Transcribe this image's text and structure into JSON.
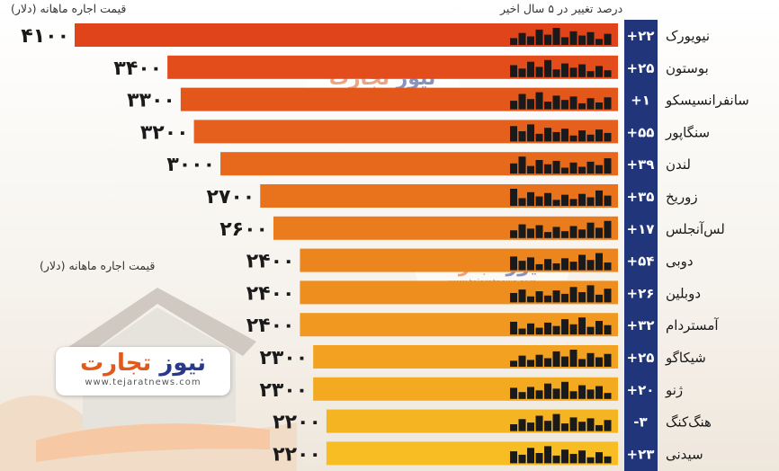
{
  "header": {
    "rent_label": "قیمت اجاره ماهانه (دلار)",
    "change_label": "درصد تغییر در ۵ سال اخیر"
  },
  "note": {
    "rent_label": "قیمت اجاره ماهانه (دلار)"
  },
  "brand": {
    "name_part1": "تجارت",
    "name_part2": "نیوز",
    "url": "www.tejaratnews.com"
  },
  "colors": {
    "bar_top": "#e0441a",
    "bar_bottom": "#f7bd22",
    "change_cell": "#21357a",
    "background": "#f7f4ef"
  },
  "chart_data": {
    "type": "bar",
    "orientation": "horizontal",
    "categories": [
      "نیویورک",
      "بوستون",
      "سانفرانسیسکو",
      "سنگاپور",
      "لندن",
      "زوریخ",
      "لس‌آنجلس",
      "دوبی",
      "دوبلین",
      "آمستردام",
      "شیکاگو",
      "ژنو",
      "هنگ‌کنگ",
      "سیدنی"
    ],
    "value_labels": [
      "۴۱۰۰",
      "۳۴۰۰",
      "۳۳۰۰",
      "۳۲۰۰",
      "۳۰۰۰",
      "۲۷۰۰",
      "۲۶۰۰",
      "۲۴۰۰",
      "۲۴۰۰",
      "۲۴۰۰",
      "۲۳۰۰",
      "۲۳۰۰",
      "۲۲۰۰",
      "۲۲۰۰"
    ],
    "change_labels": [
      "+۲۲",
      "+۲۵",
      "+۱",
      "+۵۵",
      "+۳۹",
      "+۳۵",
      "+۱۷",
      "+۵۴",
      "+۲۶",
      "+۳۲",
      "+۲۵",
      "+۲۰",
      "-۳",
      "+۲۳"
    ],
    "series": [
      {
        "name": "قیمت اجاره ماهانه (دلار)",
        "values": [
          4100,
          3400,
          3300,
          3200,
          3000,
          2700,
          2600,
          2400,
          2400,
          2400,
          2300,
          2300,
          2200,
          2200
        ]
      },
      {
        "name": "درصد تغییر در ۵ سال اخیر",
        "values": [
          22,
          25,
          1,
          55,
          39,
          35,
          17,
          54,
          26,
          32,
          25,
          20,
          -3,
          23
        ]
      }
    ],
    "xlim": [
      0,
      4100
    ]
  }
}
